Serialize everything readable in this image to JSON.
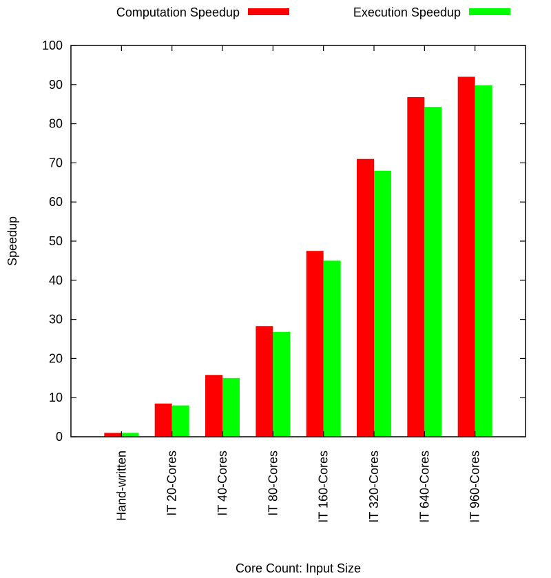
{
  "chart_data": {
    "type": "bar",
    "title": "",
    "xlabel": "Core Count: Input Size",
    "ylabel": "Speedup",
    "ylim": [
      0,
      100
    ],
    "yticks": [
      0,
      10,
      20,
      30,
      40,
      50,
      60,
      70,
      80,
      90,
      100
    ],
    "grid": false,
    "legend_position": "top",
    "categories": [
      "Hand-written",
      "IT 20-Cores",
      "IT 40-Cores",
      "IT 80-Cores",
      "IT 160-Cores",
      "IT 320-Cores",
      "IT 640-Cores",
      "IT 960-Cores"
    ],
    "series": [
      {
        "name": "Computation Speedup",
        "color": "#ff0000",
        "values": [
          1,
          8.5,
          15.8,
          28.3,
          47.5,
          71,
          86.8,
          92
        ]
      },
      {
        "name": "Execution Speedup",
        "color": "#00ff00",
        "values": [
          1,
          8,
          15,
          26.8,
          45,
          68,
          84.3,
          89.8
        ]
      }
    ]
  }
}
